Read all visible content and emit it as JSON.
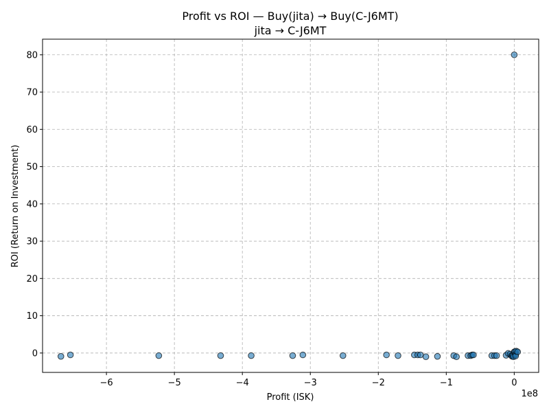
{
  "chart_data": {
    "type": "scatter",
    "title": "Profit vs ROI — Buy(jita) → Buy(C-J6MT)",
    "subtitle": "jita → C-J6MT",
    "xlabel": "Profit (ISK)",
    "ylabel": "ROI (Return on Investment)",
    "x_offset_label": "1e8",
    "x_scale": 100000000,
    "xlim": [
      -6.94,
      0.36
    ],
    "ylim": [
      -5.2,
      84.2
    ],
    "x_ticks": [
      -6,
      -5,
      -4,
      -3,
      -2,
      -1,
      0
    ],
    "x_tick_labels": [
      "−6",
      "−5",
      "−4",
      "−3",
      "−2",
      "−1",
      "0"
    ],
    "y_ticks": [
      0,
      10,
      20,
      30,
      40,
      50,
      60,
      70,
      80
    ],
    "y_tick_labels": [
      "0",
      "10",
      "20",
      "30",
      "40",
      "50",
      "60",
      "70",
      "80"
    ],
    "grid": true,
    "grid_style": "dashed",
    "marker_color": "#1f77b4",
    "marker_edge_color": "#000000",
    "marker_alpha": 0.6,
    "points": [
      {
        "x": -6.67,
        "y": -0.9
      },
      {
        "x": -6.53,
        "y": -0.5
      },
      {
        "x": -5.23,
        "y": -0.7
      },
      {
        "x": -4.32,
        "y": -0.7
      },
      {
        "x": -3.87,
        "y": -0.7
      },
      {
        "x": -3.26,
        "y": -0.7
      },
      {
        "x": -3.11,
        "y": -0.5
      },
      {
        "x": -2.52,
        "y": -0.7
      },
      {
        "x": -1.88,
        "y": -0.5
      },
      {
        "x": -1.71,
        "y": -0.7
      },
      {
        "x": -1.47,
        "y": -0.5
      },
      {
        "x": -1.42,
        "y": -0.5
      },
      {
        "x": -1.38,
        "y": -0.5
      },
      {
        "x": -1.3,
        "y": -1.0
      },
      {
        "x": -1.13,
        "y": -0.9
      },
      {
        "x": -0.89,
        "y": -0.7
      },
      {
        "x": -0.85,
        "y": -1.0
      },
      {
        "x": -0.68,
        "y": -0.7
      },
      {
        "x": -0.64,
        "y": -0.7
      },
      {
        "x": -0.62,
        "y": -0.5
      },
      {
        "x": -0.6,
        "y": -0.5
      },
      {
        "x": -0.33,
        "y": -0.7
      },
      {
        "x": -0.29,
        "y": -0.7
      },
      {
        "x": -0.26,
        "y": -0.7
      },
      {
        "x": -0.12,
        "y": -0.6
      },
      {
        "x": -0.09,
        "y": -0.1
      },
      {
        "x": -0.06,
        "y": -0.3
      },
      {
        "x": -0.04,
        "y": -0.7
      },
      {
        "x": -0.03,
        "y": -0.9
      },
      {
        "x": -0.02,
        "y": -0.6
      },
      {
        "x": -0.01,
        "y": -1.0
      },
      {
        "x": 0.0,
        "y": 0.3
      },
      {
        "x": 0.0,
        "y": 80.0
      },
      {
        "x": 0.01,
        "y": 0.4
      },
      {
        "x": 0.02,
        "y": -0.4
      },
      {
        "x": 0.02,
        "y": -0.8
      },
      {
        "x": 0.03,
        "y": 0.5
      },
      {
        "x": 0.05,
        "y": 0.3
      }
    ]
  }
}
